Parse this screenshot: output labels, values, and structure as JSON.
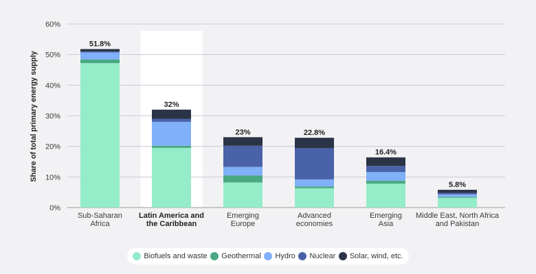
{
  "chart_data": {
    "type": "bar",
    "stacked": true,
    "ylabel": "Share of total primary energy supply",
    "ylim": [
      0,
      60
    ],
    "yticks": [
      "0%",
      "10%",
      "20%",
      "30%",
      "40%",
      "50%",
      "60%"
    ],
    "grid": true,
    "legend_position": "bottom",
    "highlighted_category": 1,
    "categories": [
      [
        "Sub-Saharan",
        "Africa"
      ],
      [
        "Latin America and",
        "the Caribbean"
      ],
      [
        "Emerging",
        "Europe"
      ],
      [
        "Advanced",
        "economies"
      ],
      [
        "Emerging",
        "Asia"
      ],
      [
        "Middle East, North Africa",
        "and Pakistan"
      ]
    ],
    "totals": [
      "51.8%",
      "32%",
      "23%",
      "22.8%",
      "16.4%",
      "5.8%"
    ],
    "series": [
      {
        "name": "Biofuels and waste",
        "color": "#95ecc9",
        "values": [
          47.2,
          19.5,
          8.2,
          6.3,
          7.8,
          3.2
        ]
      },
      {
        "name": "Geothermal",
        "color": "#4aa882",
        "values": [
          1.2,
          0.7,
          2.3,
          0.6,
          1.0,
          0.3
        ]
      },
      {
        "name": "Hydro",
        "color": "#7fb0f9",
        "values": [
          2.3,
          7.8,
          2.8,
          2.3,
          2.8,
          0.8
        ]
      },
      {
        "name": "Nuclear",
        "color": "#4a62a8",
        "values": [
          0.3,
          1.0,
          6.9,
          10.2,
          2.0,
          0.5
        ]
      },
      {
        "name": "Solar, wind, etc.",
        "color": "#2b3346",
        "values": [
          0.8,
          3.0,
          2.8,
          3.4,
          2.8,
          1.0
        ]
      }
    ]
  }
}
